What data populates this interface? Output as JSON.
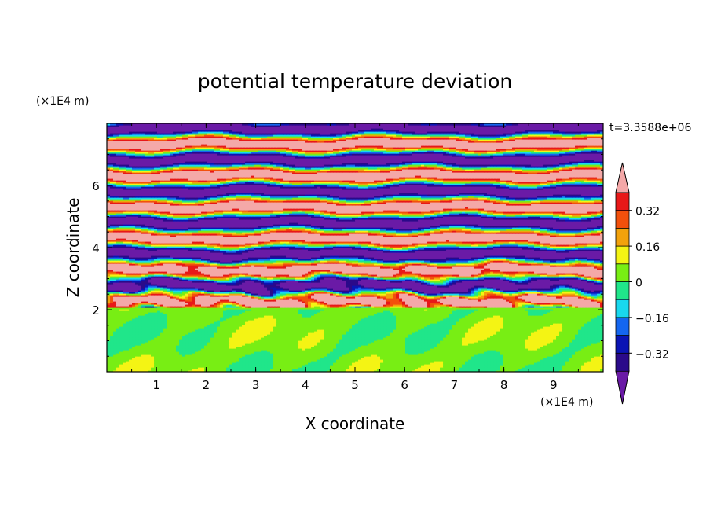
{
  "chart_data": {
    "type": "heatmap",
    "title": "potential temperature deviation",
    "xlabel": "X coordinate",
    "ylabel": "Z coordinate",
    "x_unit": "(×1E4 m)",
    "y_unit": "(×1E4 m)",
    "time_label": "t=3.3588e+06",
    "xlim": [
      0,
      10
    ],
    "ylim": [
      0,
      8
    ],
    "x_ticks": [
      "1",
      "2",
      "3",
      "4",
      "5",
      "6",
      "7",
      "8",
      "9"
    ],
    "y_ticks": [
      "2",
      "4",
      "6"
    ],
    "colorbar": {
      "tick_labels": [
        "0.32",
        "0.16",
        "0",
        "−0.16",
        "−0.32"
      ],
      "tick_values": [
        0.32,
        0.16,
        0,
        -0.16,
        -0.32
      ],
      "levels": [
        -0.4,
        -0.32,
        -0.24,
        -0.16,
        -0.08,
        0,
        0.08,
        0.16,
        0.24,
        0.32,
        0.4
      ],
      "colors": [
        "#6a1aa6",
        "#2a0a8a",
        "#0a14b4",
        "#1466f0",
        "#18d8ee",
        "#20e68a",
        "#78ee14",
        "#f4f414",
        "#f2a20c",
        "#f2500c",
        "#e81818",
        "#f4a8a8"
      ]
    },
    "field_description_levels": {
      "upper_band_zmin": 2.1,
      "upper_band_zmax": 7.95,
      "lower_layer_zmax": 2.0
    }
  }
}
